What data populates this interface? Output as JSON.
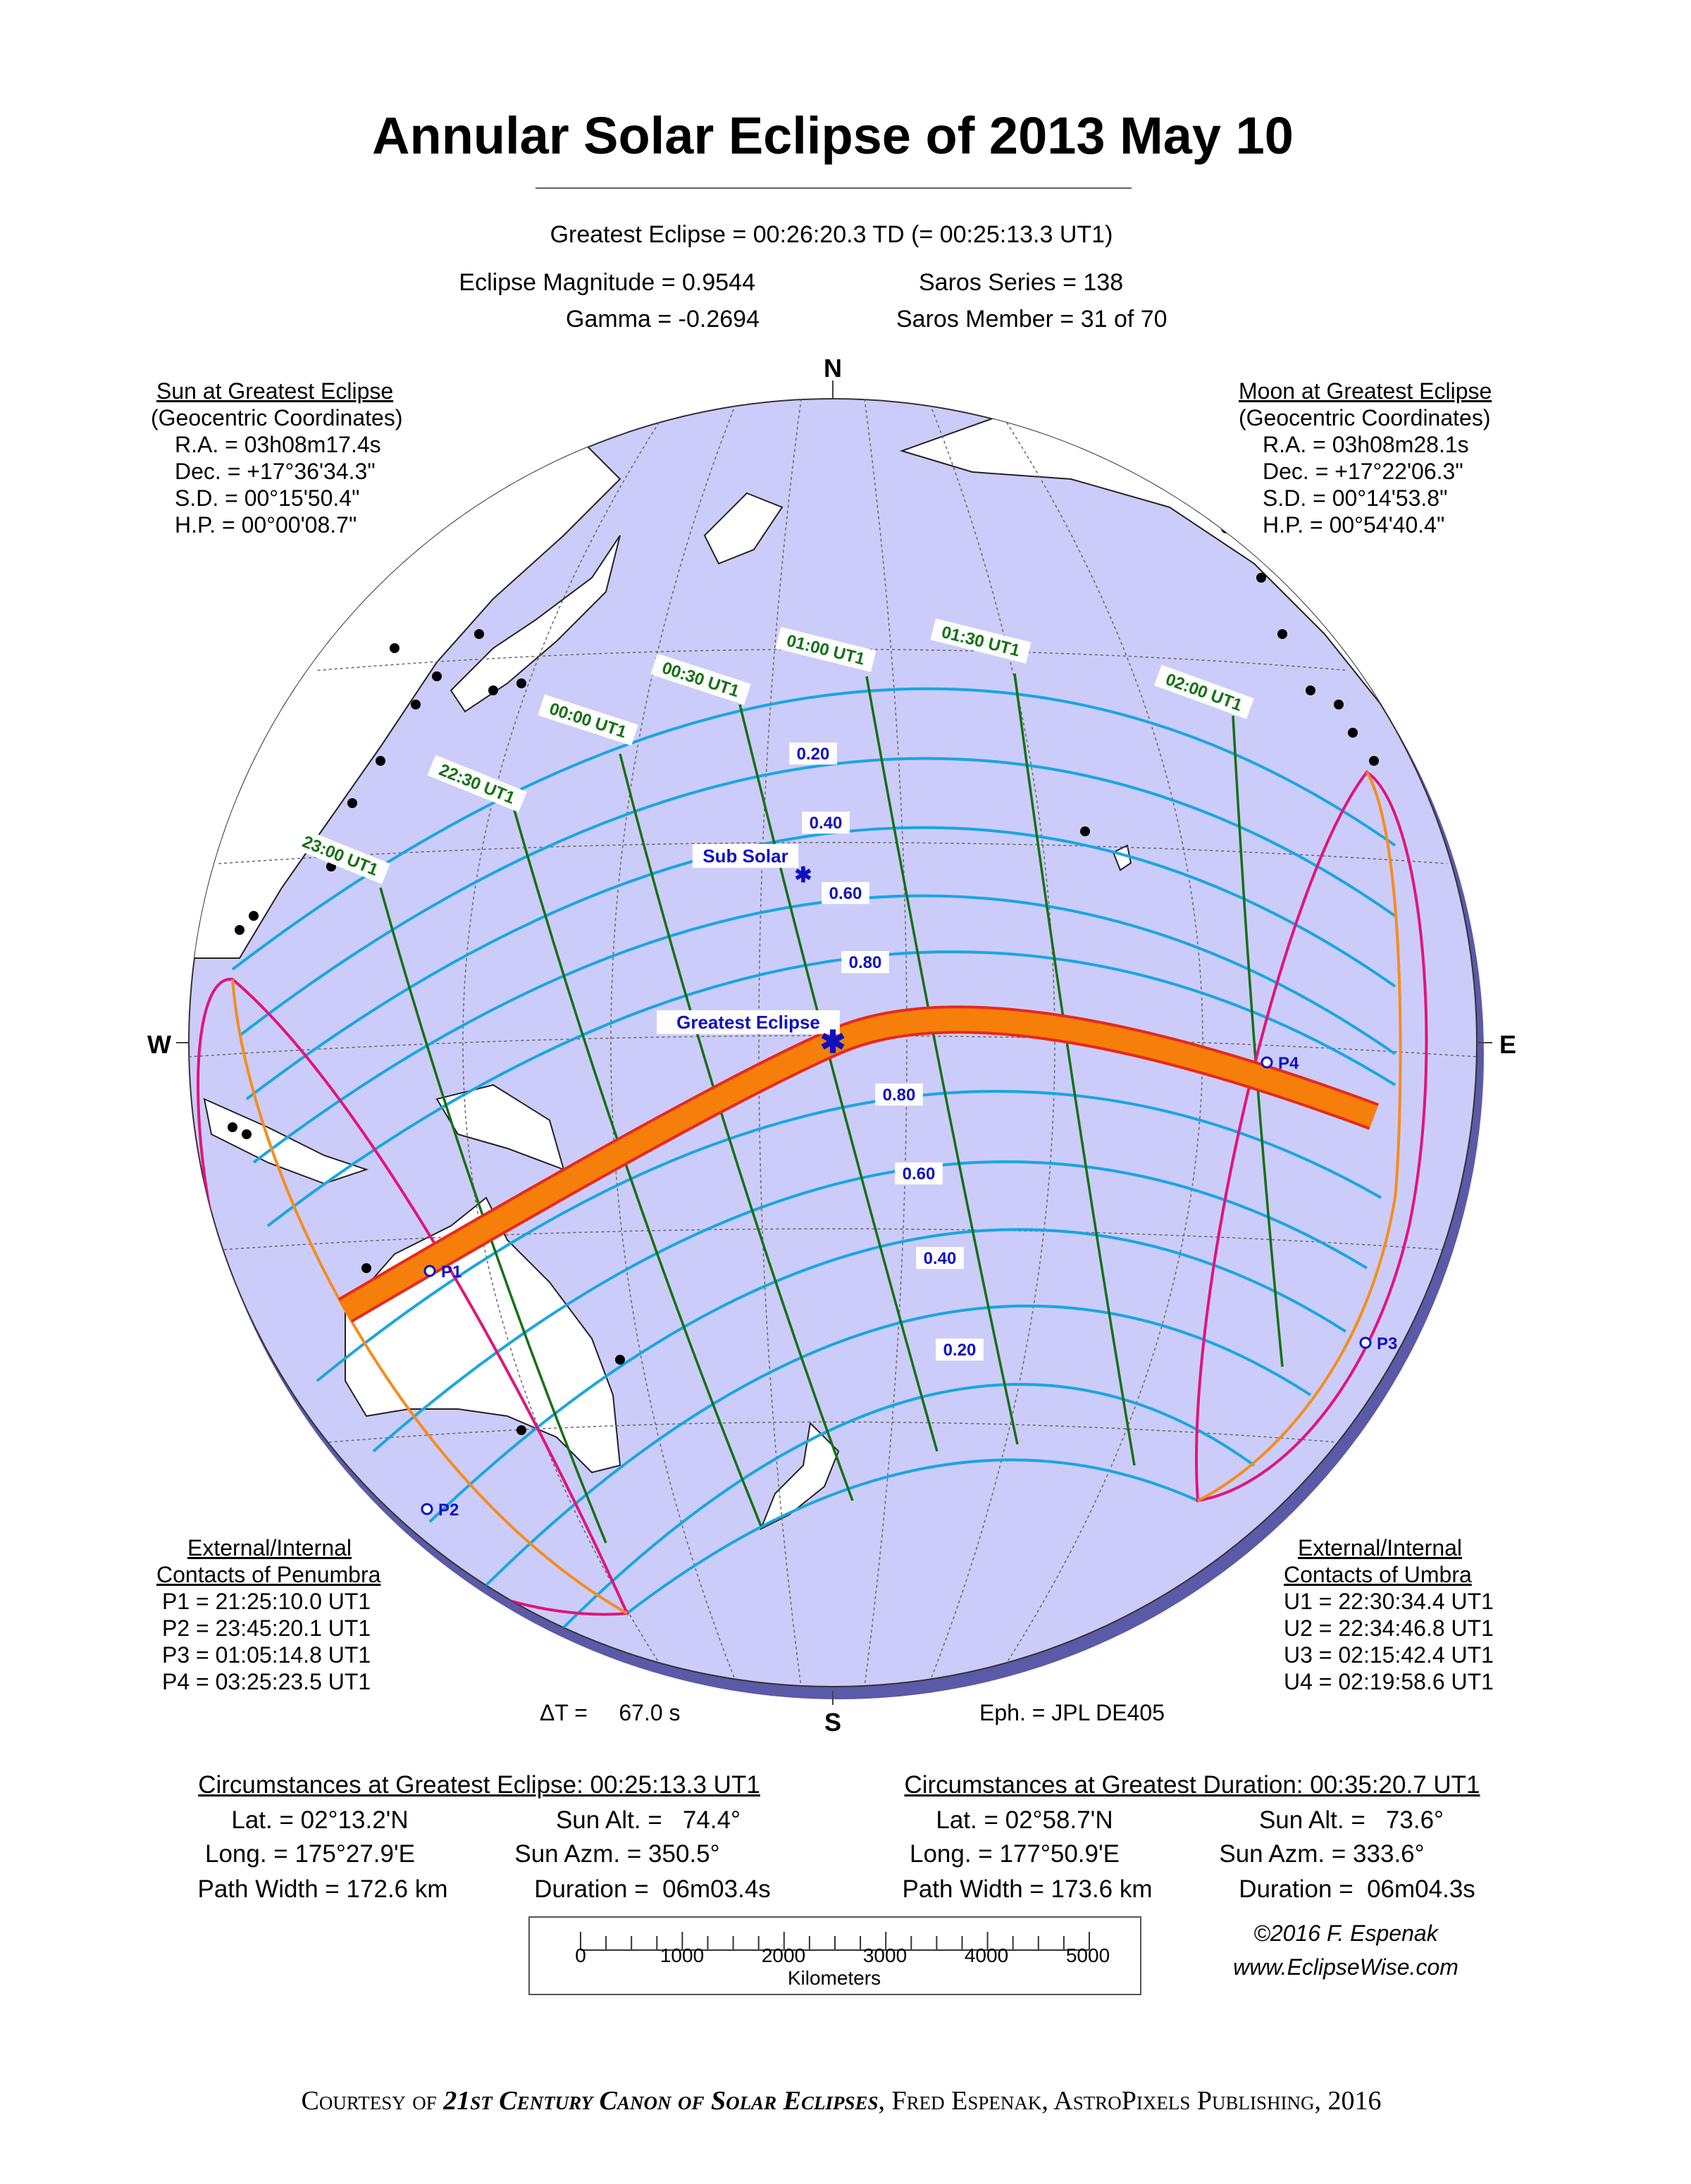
{
  "title": "Annular Solar Eclipse of  2013 May 10",
  "header": {
    "greatest_eclipse": "Greatest Eclipse =  00:26:20.3 TD   (= 00:25:13.3 UT1)",
    "eclipse_magnitude": "Eclipse Magnitude =  0.9544",
    "gamma": "Gamma = -0.2694",
    "saros_series": "Saros Series =  138",
    "saros_member": "Saros Member =   31 of 70"
  },
  "sun": {
    "heading": "Sun at Greatest Eclipse",
    "subheading": "(Geocentric Coordinates)",
    "lines": [
      "R.A. = 03h08m17.4s",
      "Dec. = +17°36'34.3\"",
      "S.D. =  00°15'50.4\"",
      "H.P. =  00°00'08.7\""
    ]
  },
  "moon": {
    "heading": "Moon at Greatest Eclipse",
    "subheading": "(Geocentric Coordinates)",
    "lines": [
      "R.A. = 03h08m28.1s",
      "Dec. = +17°22'06.3\"",
      "S.D. =  00°14'53.8\"",
      "H.P. =  00°54'40.4\""
    ]
  },
  "compass": {
    "n": "N",
    "s": "S",
    "w": "W",
    "e": "E"
  },
  "map": {
    "time_labels": [
      "23:00 UT1",
      "22:30 UT1",
      "00:00 UT1",
      "00:30 UT1",
      "01:00 UT1",
      "01:30 UT1",
      "02:00 UT1"
    ],
    "north_magnitudes": [
      "0.20",
      "0.40",
      "0.60",
      "0.80"
    ],
    "south_magnitudes": [
      "0.80",
      "0.60",
      "0.40",
      "0.20"
    ],
    "sub_solar": "Sub Solar",
    "greatest_eclipse": "Greatest Eclipse",
    "contact_points": [
      "P1",
      "P2",
      "P3",
      "P4"
    ],
    "colors": {
      "ocean": "#ccccfa",
      "night_shadow": "#5a5aa8",
      "land": "#ffffff",
      "umbral_path": "#f57f0a",
      "path_edge": "#e8281e",
      "magnitude_lines": "#1aa6e0",
      "time_lines": "#157015",
      "penumbra_limits": "#e0157a",
      "rise_set_curves": "#f58c1e",
      "labels_blue": "#1010c0"
    }
  },
  "penumbra": {
    "heading1": "External/Internal",
    "heading2": "Contacts of Penumbra",
    "lines": [
      "P1 = 21:25:10.0 UT1",
      "P2 = 23:45:20.1 UT1",
      "P3 = 01:05:14.8 UT1",
      "P4 = 03:25:23.5 UT1"
    ]
  },
  "umbra": {
    "heading1": "External/Internal",
    "heading2": "Contacts of Umbra",
    "lines": [
      "U1 = 22:30:34.4 UT1",
      "U2 = 22:34:46.8 UT1",
      "U3 = 02:15:42.4 UT1",
      "U4 = 02:19:58.6 UT1"
    ]
  },
  "delta_t": "ΔT =     67.0 s",
  "ephemeris": "Eph. = JPL DE405",
  "greatest_eclipse_circ": {
    "heading": "Circumstances at Greatest Eclipse:  00:25:13.3 UT1",
    "lat": "Lat. =  02°13.2'N",
    "long": "Long. = 175°27.9'E",
    "path_width": "Path Width = 172.6 km",
    "sun_alt": "Sun Alt. =   74.4°",
    "sun_azm": "Sun Azm. = 350.5°",
    "duration": "Duration =  06m03.4s"
  },
  "greatest_duration_circ": {
    "heading": "Circumstances at Greatest Duration:  00:35:20.7 UT1",
    "lat": "Lat. =  02°58.7'N",
    "long": "Long. = 177°50.9'E",
    "path_width": "Path Width = 173.6 km",
    "sun_alt": "Sun Alt. =   73.6°",
    "sun_azm": "Sun Azm. = 333.6°",
    "duration": "Duration =  06m04.3s"
  },
  "scale": {
    "ticks": [
      "0",
      "1000",
      "2000",
      "3000",
      "4000",
      "5000"
    ],
    "unit": "Kilometers"
  },
  "credit": {
    "copyright": "©2016  F. Espenak",
    "website": "www.EclipseWise.com"
  },
  "footer": {
    "prefix": "Courtesy of ",
    "book": "21st Century Canon of Solar Eclipses",
    "suffix": ", Fred Espenak, AstroPixels Publishing, 2016"
  }
}
